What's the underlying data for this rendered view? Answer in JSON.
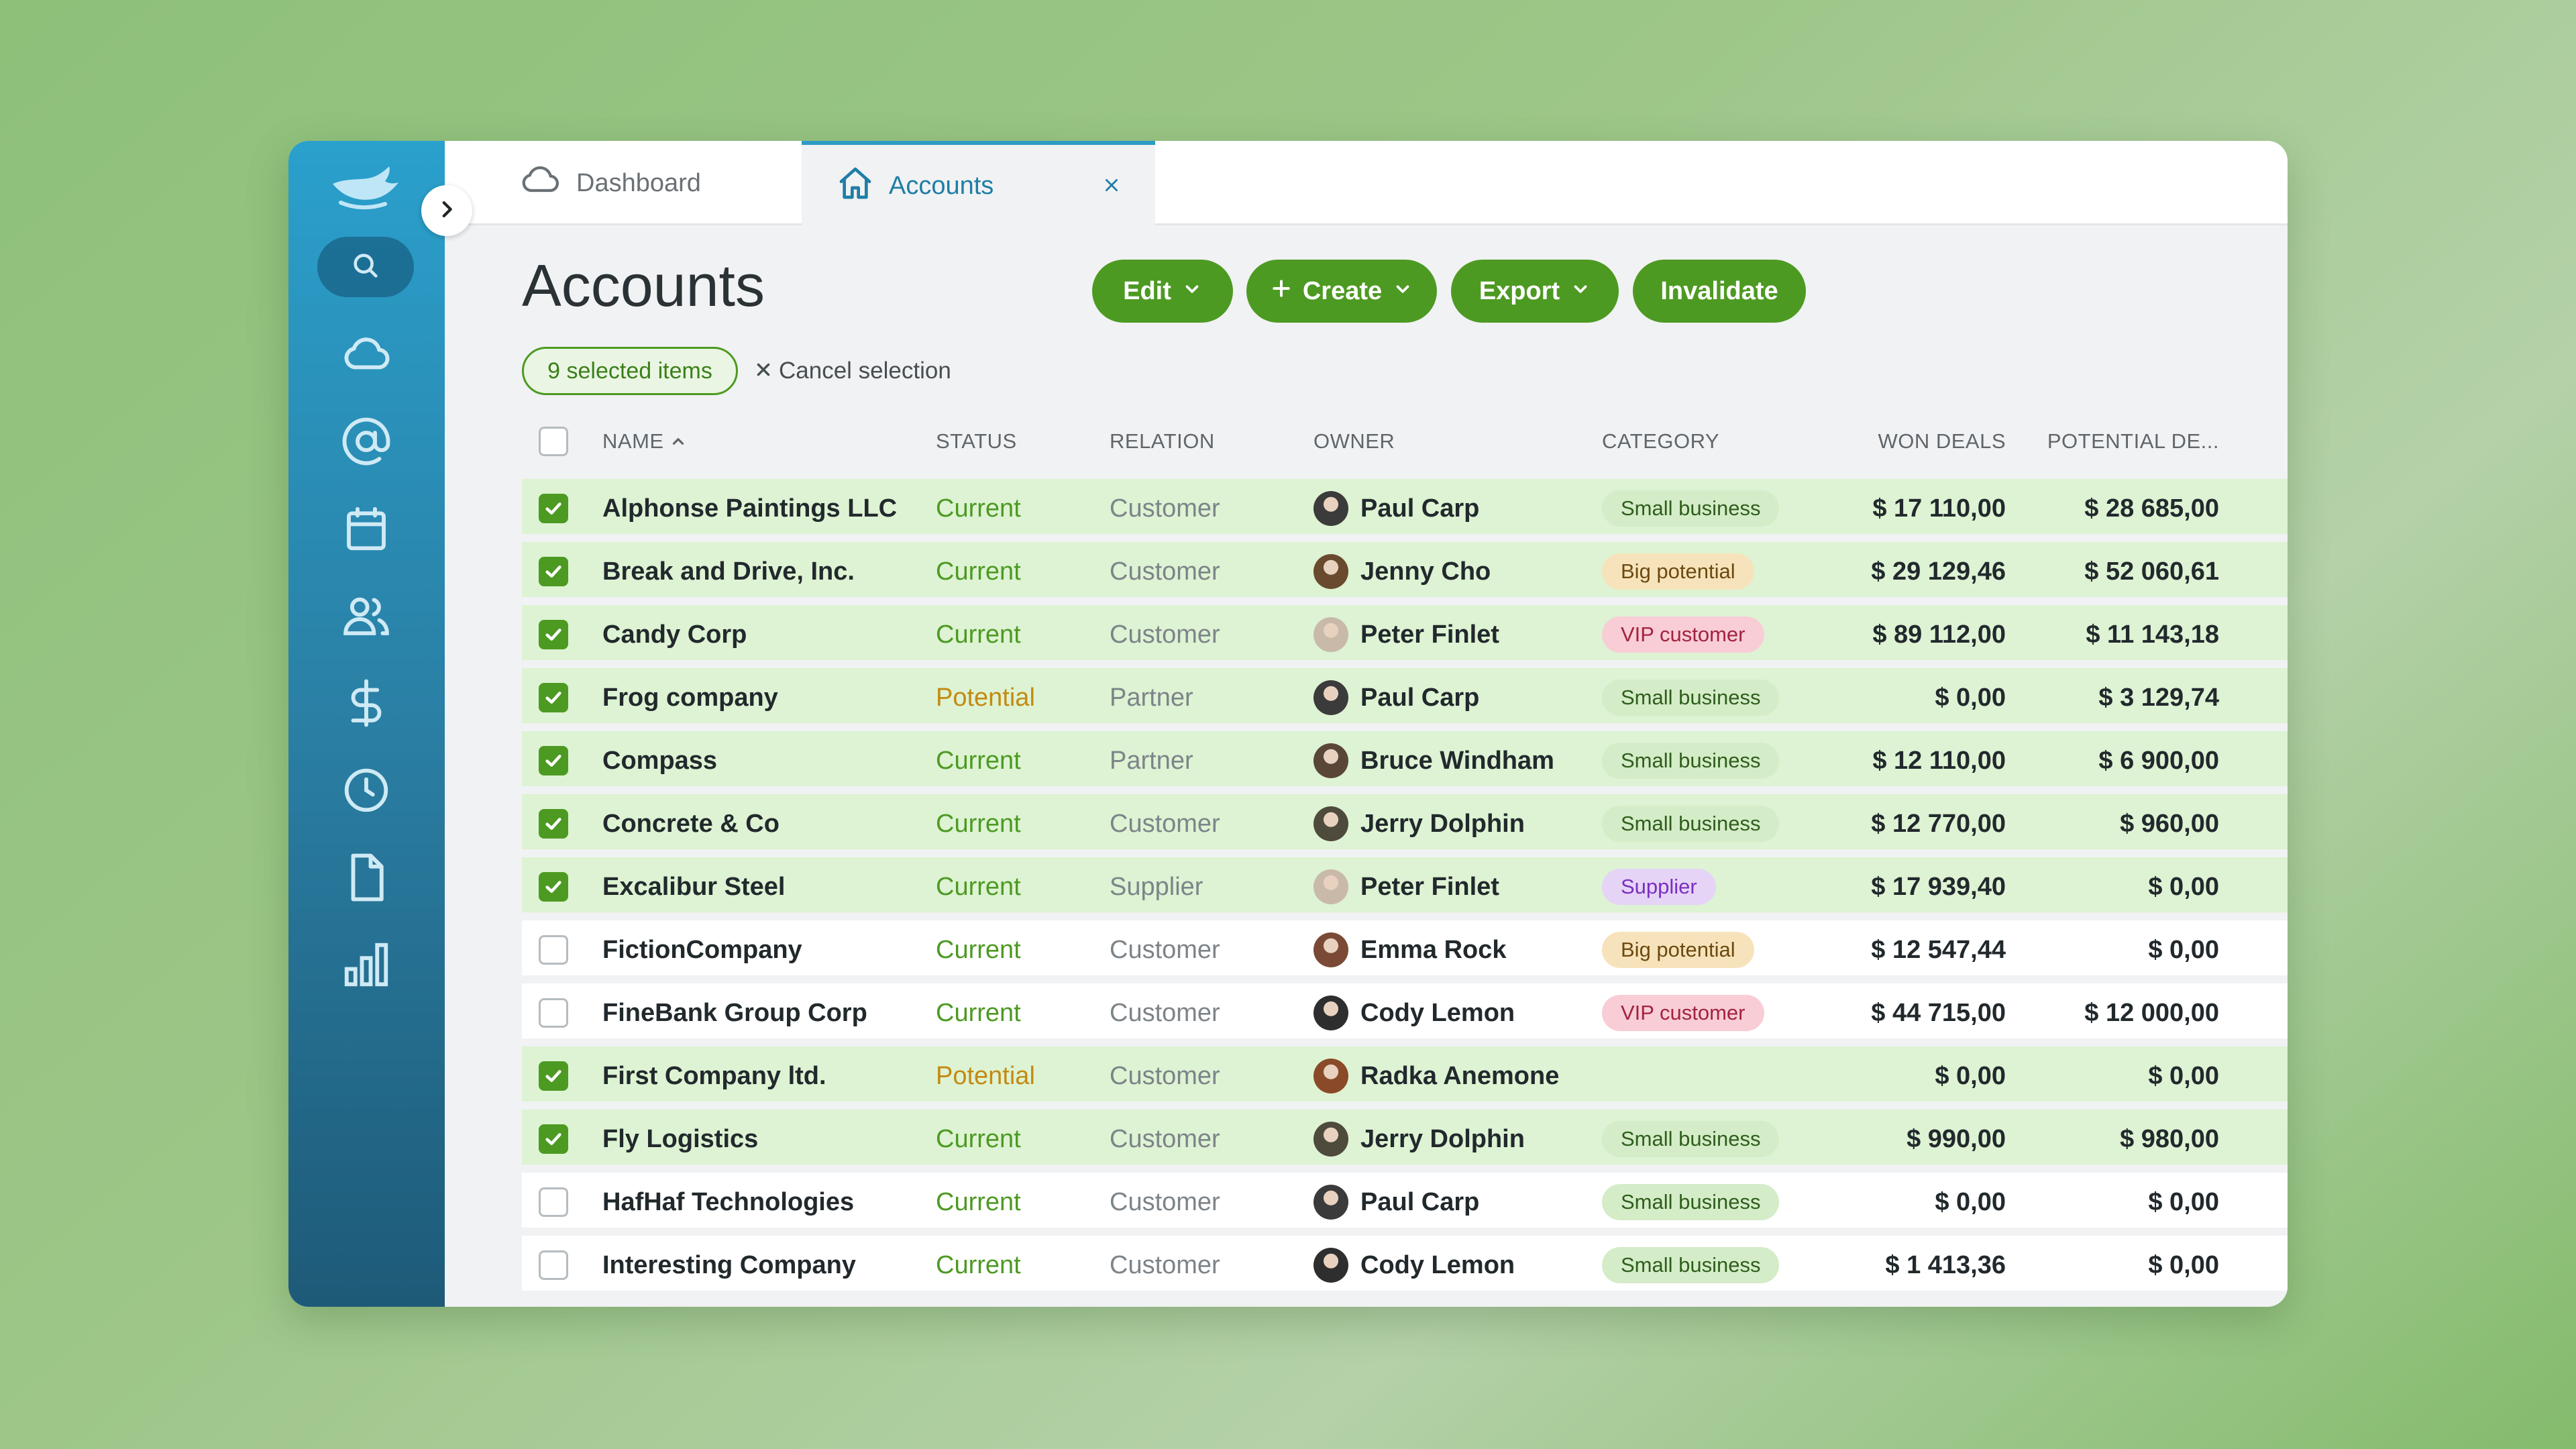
{
  "colors": {
    "brand_green": "#4d9a22",
    "sidebar_top": "#2aa0cc",
    "sidebar_bottom": "#1e5a78",
    "status_current": "#4d9a22",
    "status_potential": "#c48a12",
    "row_selected_bg": "#ddf3d3"
  },
  "sidebar": {
    "items": [
      {
        "name": "cloud-icon",
        "interactable": true
      },
      {
        "name": "at-sign-icon",
        "interactable": true
      },
      {
        "name": "calendar-icon",
        "interactable": true
      },
      {
        "name": "users-icon",
        "interactable": true
      },
      {
        "name": "dollar-icon",
        "interactable": true
      },
      {
        "name": "clock-icon",
        "interactable": true
      },
      {
        "name": "document-icon",
        "interactable": true
      },
      {
        "name": "bar-chart-icon",
        "interactable": true
      }
    ]
  },
  "tabs": {
    "dashboard": "Dashboard",
    "accounts": "Accounts"
  },
  "page": {
    "title": "Accounts"
  },
  "toolbar": {
    "edit": "Edit",
    "create": "Create",
    "export": "Export",
    "invalidate": "Invalidate"
  },
  "selection": {
    "count_label": "9 selected items",
    "cancel": "Cancel selection"
  },
  "table": {
    "headers": {
      "name": "NAME",
      "status": "STATUS",
      "relation": "RELATION",
      "owner": "OWNER",
      "category": "CATEGORY",
      "won": "WON DEALS",
      "potential": "POTENTIAL DE..."
    },
    "rows": [
      {
        "selected": true,
        "name": "Alphonse Paintings LLC",
        "status": "Current",
        "relation": "Customer",
        "owner": "Paul Carp",
        "category": "Small business",
        "won": "$ 17 110,00",
        "potential": "$ 28 685,00"
      },
      {
        "selected": true,
        "name": "Break and Drive, Inc.",
        "status": "Current",
        "relation": "Customer",
        "owner": "Jenny Cho",
        "category": "Big potential",
        "won": "$ 29 129,46",
        "potential": "$ 52 060,61"
      },
      {
        "selected": true,
        "name": "Candy Corp",
        "status": "Current",
        "relation": "Customer",
        "owner": "Peter Finlet",
        "category": "VIP customer",
        "won": "$ 89 112,00",
        "potential": "$ 11 143,18"
      },
      {
        "selected": true,
        "name": "Frog company",
        "status": "Potential",
        "relation": "Partner",
        "owner": "Paul Carp",
        "category": "Small business",
        "won": "$ 0,00",
        "potential": "$ 3 129,74"
      },
      {
        "selected": true,
        "name": "Compass",
        "status": "Current",
        "relation": "Partner",
        "owner": "Bruce Windham",
        "category": "Small business",
        "won": "$ 12 110,00",
        "potential": "$ 6 900,00"
      },
      {
        "selected": true,
        "name": "Concrete & Co",
        "status": "Current",
        "relation": "Customer",
        "owner": "Jerry Dolphin",
        "category": "Small business",
        "won": "$ 12 770,00",
        "potential": "$ 960,00"
      },
      {
        "selected": true,
        "name": "Excalibur Steel",
        "status": "Current",
        "relation": "Supplier",
        "owner": "Peter Finlet",
        "category": "Supplier",
        "won": "$ 17 939,40",
        "potential": "$ 0,00"
      },
      {
        "selected": false,
        "name": "FictionCompany",
        "status": "Current",
        "relation": "Customer",
        "owner": "Emma Rock",
        "category": "Big potential",
        "won": "$ 12 547,44",
        "potential": "$ 0,00"
      },
      {
        "selected": false,
        "name": "FineBank Group Corp",
        "status": "Current",
        "relation": "Customer",
        "owner": "Cody Lemon",
        "category": "VIP customer",
        "won": "$ 44 715,00",
        "potential": "$ 12 000,00"
      },
      {
        "selected": true,
        "name": "First Company ltd.",
        "status": "Potential",
        "relation": "Customer",
        "owner": "Radka Anemone",
        "category": "",
        "won": "$ 0,00",
        "potential": "$ 0,00"
      },
      {
        "selected": true,
        "name": "Fly Logistics",
        "status": "Current",
        "relation": "Customer",
        "owner": "Jerry Dolphin",
        "category": "Small business",
        "won": "$ 990,00",
        "potential": "$ 980,00"
      },
      {
        "selected": false,
        "name": "HafHaf Technologies",
        "status": "Current",
        "relation": "Customer",
        "owner": "Paul Carp",
        "category": "Small business",
        "won": "$ 0,00",
        "potential": "$ 0,00"
      },
      {
        "selected": false,
        "name": "Interesting Company",
        "status": "Current",
        "relation": "Customer",
        "owner": "Cody Lemon",
        "category": "Small business",
        "won": "$ 1 413,36",
        "potential": "$ 0,00"
      }
    ]
  },
  "category_styles": {
    "Small business": {
      "bg": "#d4ecc8",
      "fg": "#2f5e1c"
    },
    "Big potential": {
      "bg": "#f7e3bb",
      "fg": "#6b4a10"
    },
    "VIP customer": {
      "bg": "#f8cdd6",
      "fg": "#a2233f"
    },
    "Supplier": {
      "bg": "#e6d4f7",
      "fg": "#7a2fc0"
    }
  },
  "avatar_colors": {
    "Paul Carp": "#3b3b3b",
    "Jenny Cho": "#6a4a2e",
    "Peter Finlet": "#c9b9a8",
    "Bruce Windham": "#5a4636",
    "Jerry Dolphin": "#4e4a3c",
    "Emma Rock": "#7a4a36",
    "Cody Lemon": "#2e2e2e",
    "Radka Anemone": "#8a4a2a"
  }
}
